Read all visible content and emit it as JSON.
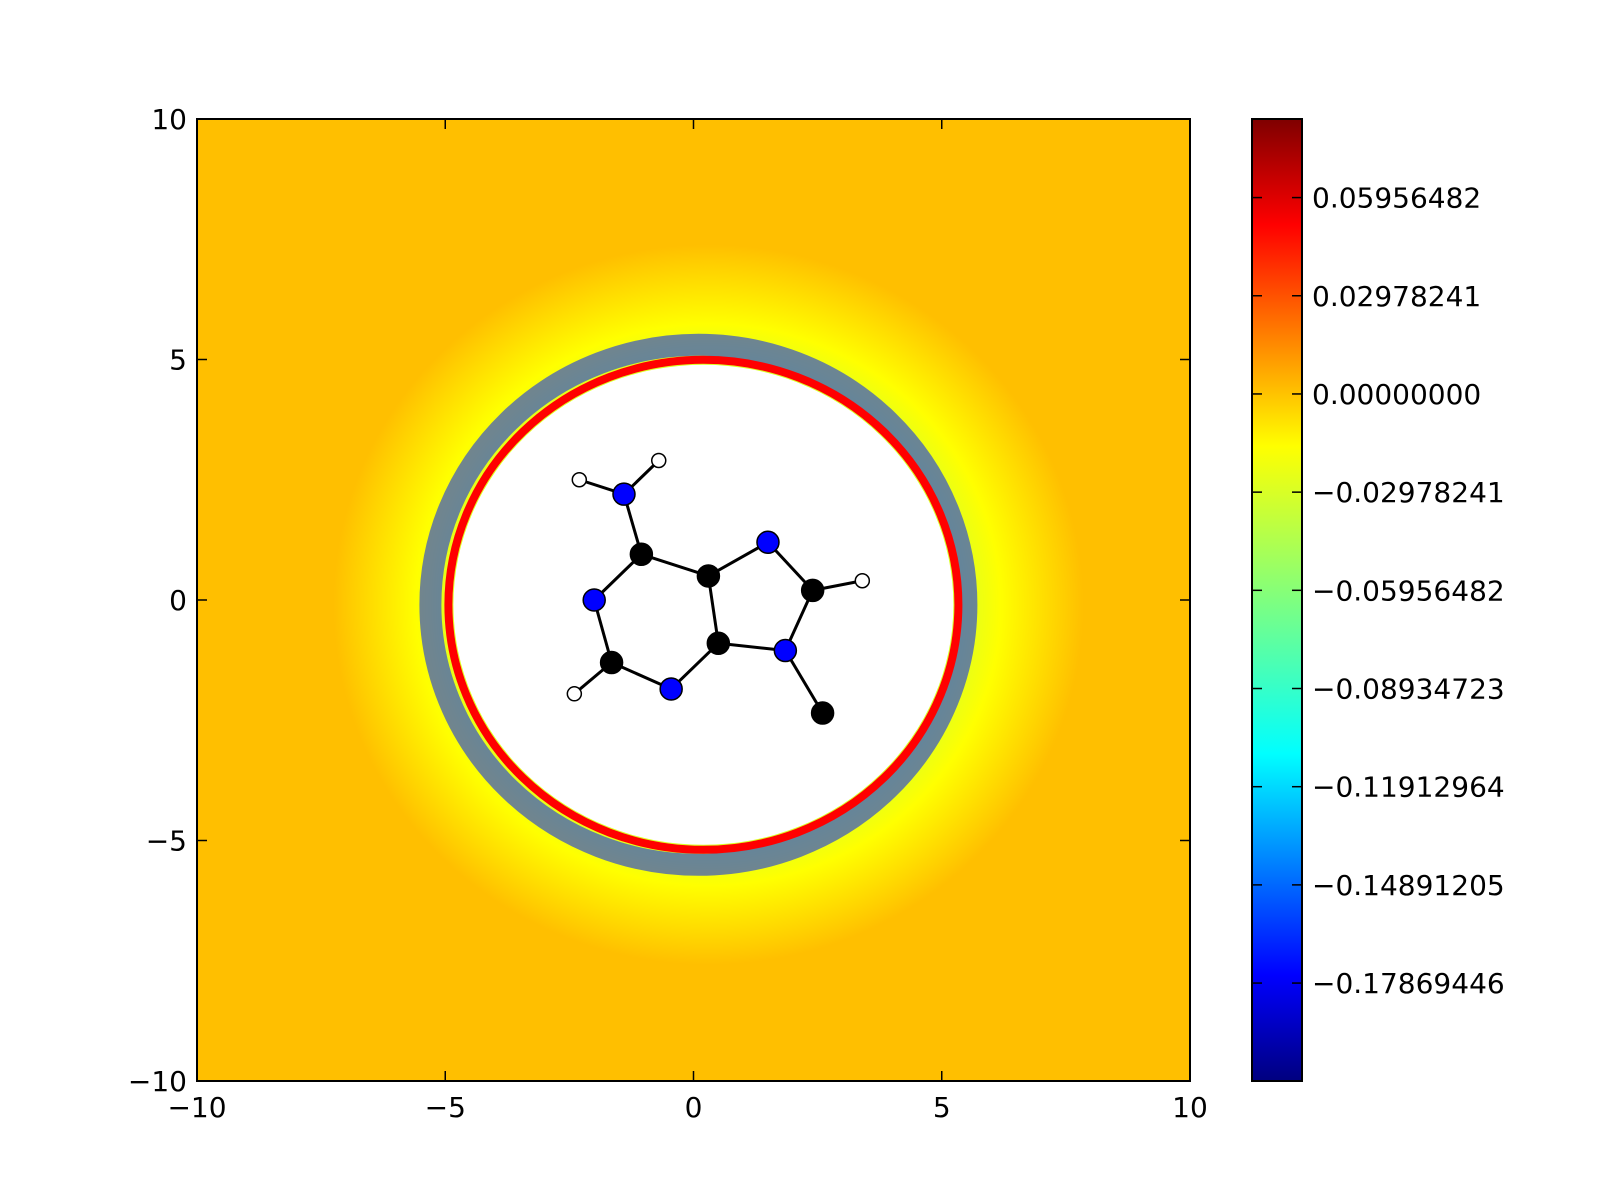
{
  "chart_data": {
    "type": "heatmap",
    "title": "",
    "xlabel": "",
    "ylabel": "",
    "xlim": [
      -10,
      10
    ],
    "ylim": [
      -10,
      10
    ],
    "x_ticks": [
      -10,
      -5,
      0,
      5,
      10
    ],
    "y_ticks": [
      -10,
      -5,
      0,
      5,
      10
    ],
    "x_tick_labels": [
      "−10",
      "−5",
      "0",
      "5",
      "10"
    ],
    "y_tick_labels": [
      "−10",
      "−5",
      "0",
      "5",
      "10"
    ],
    "grid": false,
    "colormap": "jet",
    "background_value": 0.0,
    "background_color": "#ffbf00",
    "colorbar": {
      "range": [
        -0.2084,
        0.0834
      ],
      "ticks": [
        0.05956482,
        0.02978241,
        0.0,
        -0.02978241,
        -0.05956482,
        -0.08934723,
        -0.11912964,
        -0.14891205,
        -0.17869446
      ],
      "tick_labels": [
        "0.05956482",
        "0.02978241",
        "0.00000000",
        "−0.02978241",
        "−0.05956482",
        "−0.08934723",
        "−0.11912964",
        "−0.14891205",
        "−0.17869446"
      ]
    },
    "atoms": [
      {
        "element": "N",
        "x": -1.4,
        "y": 2.2
      },
      {
        "element": "H",
        "x": -2.3,
        "y": 2.5
      },
      {
        "element": "H",
        "x": -0.7,
        "y": 2.9
      },
      {
        "element": "C",
        "x": -1.05,
        "y": 0.95
      },
      {
        "element": "N",
        "x": -2.0,
        "y": 0.0
      },
      {
        "element": "C",
        "x": -1.65,
        "y": -1.3
      },
      {
        "element": "H",
        "x": -2.4,
        "y": -1.95
      },
      {
        "element": "N",
        "x": -0.45,
        "y": -1.85
      },
      {
        "element": "C",
        "x": 0.5,
        "y": -0.9
      },
      {
        "element": "C",
        "x": 0.3,
        "y": 0.5
      },
      {
        "element": "N",
        "x": 1.5,
        "y": 1.2
      },
      {
        "element": "C",
        "x": 2.4,
        "y": 0.2
      },
      {
        "element": "H",
        "x": 3.4,
        "y": 0.4
      },
      {
        "element": "N",
        "x": 1.85,
        "y": -1.05
      },
      {
        "element": "C",
        "x": 2.6,
        "y": -2.35
      }
    ],
    "bonds": [
      [
        0,
        1
      ],
      [
        0,
        2
      ],
      [
        0,
        3
      ],
      [
        3,
        4
      ],
      [
        4,
        5
      ],
      [
        5,
        6
      ],
      [
        5,
        7
      ],
      [
        7,
        8
      ],
      [
        8,
        9
      ],
      [
        9,
        3
      ],
      [
        9,
        10
      ],
      [
        10,
        11
      ],
      [
        11,
        12
      ],
      [
        11,
        13
      ],
      [
        13,
        8
      ],
      [
        13,
        14
      ]
    ],
    "element_colors": {
      "N": "#0000ff",
      "C": "#000000",
      "H": "#ffffff"
    }
  }
}
